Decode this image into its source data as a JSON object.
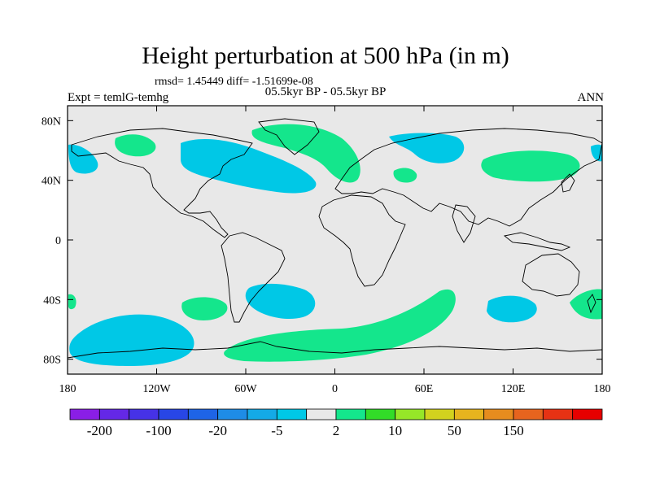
{
  "header": {
    "title": "Height perturbation at 500 hPa (in m)",
    "stats": "rmsd= 1.45449  diff= -1.51699e-08",
    "subtitle": "05.5kyr BP - 05.5kyr BP",
    "left_label": "Expt = temlG-temhg",
    "right_label": "ANN"
  },
  "axes": {
    "lon_ticks": [
      {
        "lon": -180,
        "label": "180"
      },
      {
        "lon": -120,
        "label": "120W"
      },
      {
        "lon": -60,
        "label": "60W"
      },
      {
        "lon": 0,
        "label": "0"
      },
      {
        "lon": 60,
        "label": "60E"
      },
      {
        "lon": 120,
        "label": "120E"
      },
      {
        "lon": 180,
        "label": "180"
      }
    ],
    "lat_ticks": [
      {
        "lat": 80,
        "label": "80N"
      },
      {
        "lat": 40,
        "label": "40N"
      },
      {
        "lat": 0,
        "label": "0"
      },
      {
        "lat": -40,
        "label": "40S"
      },
      {
        "lat": -80,
        "label": "80S"
      }
    ],
    "lon_range": [
      -180,
      180
    ],
    "lat_range": [
      -90,
      90
    ]
  },
  "colorbar": {
    "colors": [
      "#8a1ee6",
      "#6428e6",
      "#4632e6",
      "#2846e6",
      "#1e64e6",
      "#1e8ce6",
      "#14aae6",
      "#00c8e6",
      "#e8e8e8",
      "#14e68c",
      "#32dc28",
      "#96e628",
      "#d2d21e",
      "#e6b41e",
      "#e68c1e",
      "#e6641e",
      "#e63214",
      "#e60000"
    ],
    "labels": [
      {
        "after_box": 1,
        "text": "-200"
      },
      {
        "after_box": 3,
        "text": "-100"
      },
      {
        "after_box": 5,
        "text": "-20"
      },
      {
        "after_box": 7,
        "text": "-5"
      },
      {
        "after_box": 9,
        "text": "2"
      },
      {
        "after_box": 11,
        "text": "10"
      },
      {
        "after_box": 13,
        "text": "50"
      },
      {
        "after_box": 15,
        "text": "150"
      }
    ]
  },
  "map": {
    "ocean_color": "#e8e8e8",
    "negative_color": "#00c8e6",
    "positive_color": "#14e68c"
  }
}
